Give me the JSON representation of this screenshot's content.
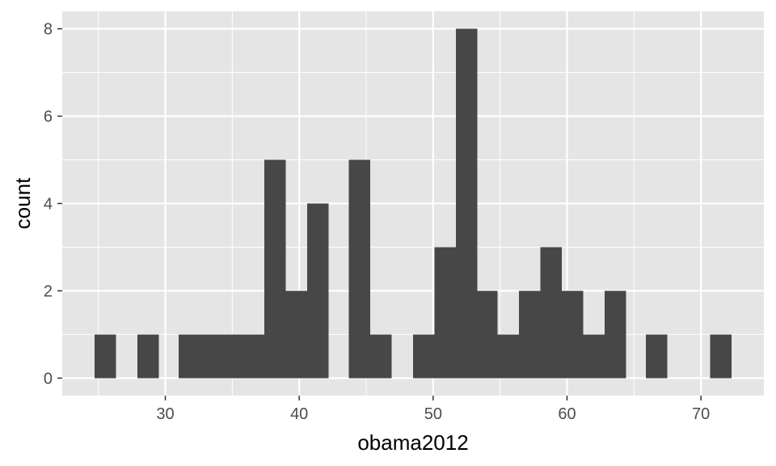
{
  "chart_data": {
    "type": "bar",
    "title": "",
    "xlabel": "obama2012",
    "ylabel": "count",
    "bin_width": 1.6,
    "bins": [
      {
        "x_start": 24.7,
        "x_end": 26.3,
        "count": 1
      },
      {
        "x_start": 27.9,
        "x_end": 29.5,
        "count": 1
      },
      {
        "x_start": 31.0,
        "x_end": 32.6,
        "count": 1
      },
      {
        "x_start": 32.6,
        "x_end": 34.2,
        "count": 1
      },
      {
        "x_start": 34.2,
        "x_end": 35.8,
        "count": 1
      },
      {
        "x_start": 35.8,
        "x_end": 37.4,
        "count": 1
      },
      {
        "x_start": 37.4,
        "x_end": 39.0,
        "count": 5
      },
      {
        "x_start": 39.0,
        "x_end": 40.6,
        "count": 2
      },
      {
        "x_start": 40.6,
        "x_end": 42.2,
        "count": 4
      },
      {
        "x_start": 43.7,
        "x_end": 45.3,
        "count": 5
      },
      {
        "x_start": 45.3,
        "x_end": 46.9,
        "count": 1
      },
      {
        "x_start": 48.5,
        "x_end": 50.1,
        "count": 1
      },
      {
        "x_start": 50.1,
        "x_end": 51.7,
        "count": 3
      },
      {
        "x_start": 51.7,
        "x_end": 53.3,
        "count": 8
      },
      {
        "x_start": 53.3,
        "x_end": 54.8,
        "count": 2
      },
      {
        "x_start": 54.8,
        "x_end": 56.4,
        "count": 1
      },
      {
        "x_start": 56.4,
        "x_end": 58.0,
        "count": 2
      },
      {
        "x_start": 58.0,
        "x_end": 59.6,
        "count": 3
      },
      {
        "x_start": 59.6,
        "x_end": 61.2,
        "count": 2
      },
      {
        "x_start": 61.2,
        "x_end": 62.8,
        "count": 1
      },
      {
        "x_start": 62.8,
        "x_end": 64.4,
        "count": 2
      },
      {
        "x_start": 65.9,
        "x_end": 67.5,
        "count": 1
      },
      {
        "x_start": 70.7,
        "x_end": 72.3,
        "count": 1
      }
    ],
    "xlim": [
      22.3,
      74.7
    ],
    "ylim": [
      -0.4,
      8.4
    ],
    "x_ticks": [
      30,
      40,
      50,
      60,
      70
    ],
    "y_ticks": [
      0,
      2,
      4,
      6,
      8
    ],
    "grid": true,
    "colors": {
      "panel": "#e5e5e5",
      "grid": "#ffffff",
      "bar": "#474747",
      "tick_text": "#4d4d4d",
      "axis_title": "#000000"
    }
  }
}
